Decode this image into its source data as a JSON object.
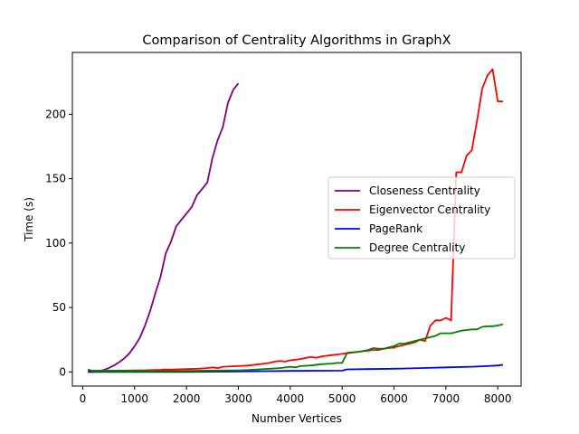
{
  "chart_data": {
    "type": "line",
    "title": "Comparison of Centrality Algorithms in GraphX",
    "xlabel": "Number Vertices",
    "ylabel": "Time (s)",
    "xlim": [
      -200,
      8450
    ],
    "ylim": [
      -11,
      248
    ],
    "xticks": [
      0,
      1000,
      2000,
      3000,
      4000,
      5000,
      6000,
      7000,
      8000
    ],
    "yticks": [
      0,
      50,
      100,
      150,
      200
    ],
    "grid": false,
    "legend_position": "right",
    "series": [
      {
        "name": "Closeness Centrality",
        "color": "#800080",
        "x": [
          100,
          200,
          300,
          400,
          500,
          600,
          700,
          800,
          900,
          1000,
          1100,
          1200,
          1300,
          1400,
          1500,
          1600,
          1700,
          1800,
          1900,
          2000,
          2100,
          2200,
          2300,
          2400,
          2500,
          2600,
          2700,
          2800,
          2900,
          3000
        ],
        "y": [
          0,
          0,
          0.5,
          1.5,
          3,
          5,
          7.5,
          10.5,
          14.5,
          20,
          26.5,
          36,
          47.5,
          61,
          74,
          92,
          101,
          113,
          118,
          123,
          128,
          137,
          142,
          147,
          166,
          180,
          190,
          209,
          219,
          224
        ]
      },
      {
        "name": "Eigenvector Centrality",
        "color": "#ff0000",
        "x": [
          100,
          400,
          600,
          800,
          1000,
          1200,
          1400,
          1500,
          1600,
          1700,
          1800,
          2000,
          2200,
          2400,
          2500,
          2600,
          2700,
          3000,
          3200,
          3400,
          3500,
          3600,
          3700,
          3800,
          3900,
          4000,
          4100,
          4200,
          4300,
          4400,
          4500,
          4600,
          4700,
          4800,
          4900,
          5000,
          5100,
          5200,
          5300,
          5400,
          5500,
          5600,
          5700,
          5800,
          5900,
          6000,
          6100,
          6200,
          6300,
          6400,
          6500,
          6600,
          6700,
          6800,
          6900,
          7000,
          7100,
          7200,
          7300,
          7400,
          7500,
          7600,
          7700,
          7800,
          7900,
          8000,
          8100
        ],
        "y": [
          1,
          1,
          1,
          1,
          1.2,
          1.3,
          1.5,
          1.6,
          2,
          1.8,
          2,
          2.2,
          2.5,
          3,
          3.5,
          3,
          4,
          4.5,
          5,
          6,
          6.5,
          7,
          8,
          8.5,
          8,
          9,
          9.5,
          10,
          11,
          11.5,
          11,
          12,
          12.5,
          13,
          13.5,
          14,
          14.5,
          15,
          15.5,
          16,
          16.5,
          17,
          17,
          18,
          18.5,
          19,
          20,
          21,
          22,
          23,
          25,
          24,
          36,
          40,
          40,
          42,
          40,
          155,
          155,
          168,
          172,
          195,
          220,
          230,
          235,
          210,
          210
        ],
        "y_end_x": 8100
      },
      {
        "name": "PageRank",
        "color": "#0000ff",
        "x": [
          100,
          1000,
          2000,
          3000,
          4000,
          5000,
          5100,
          5500,
          6000,
          6500,
          7000,
          7500,
          7800,
          8000,
          8100
        ],
        "y": [
          0,
          0,
          0,
          0.3,
          0.8,
          1,
          2,
          2.2,
          2.5,
          3,
          3.5,
          4,
          4.5,
          5,
          5.5
        ]
      },
      {
        "name": "Degree Centrality",
        "color": "#008000",
        "x": [
          100,
          200,
          1000,
          2000,
          3000,
          3200,
          3400,
          3600,
          3800,
          4000,
          4100,
          4200,
          4400,
          4600,
          4800,
          4900,
          5000,
          5100,
          5300,
          5500,
          5600,
          5700,
          5800,
          5900,
          6000,
          6100,
          6200,
          6300,
          6400,
          6500,
          6600,
          6700,
          6800,
          6900,
          7000,
          7100,
          7200,
          7300,
          7400,
          7500,
          7600,
          7700,
          7800,
          7900,
          8000,
          8100
        ],
        "y": [
          2,
          0.5,
          0.5,
          0.8,
          1.2,
          1.5,
          2,
          2.5,
          3,
          4,
          3.5,
          4.5,
          5,
          6,
          6.5,
          7,
          7,
          15,
          15.5,
          17,
          18.5,
          18,
          18,
          19,
          20,
          22,
          22,
          23,
          24,
          25,
          26,
          27,
          28,
          30,
          30,
          30,
          31,
          32,
          32.5,
          33,
          33,
          35,
          35.5,
          35.5,
          36,
          37
        ]
      }
    ]
  }
}
